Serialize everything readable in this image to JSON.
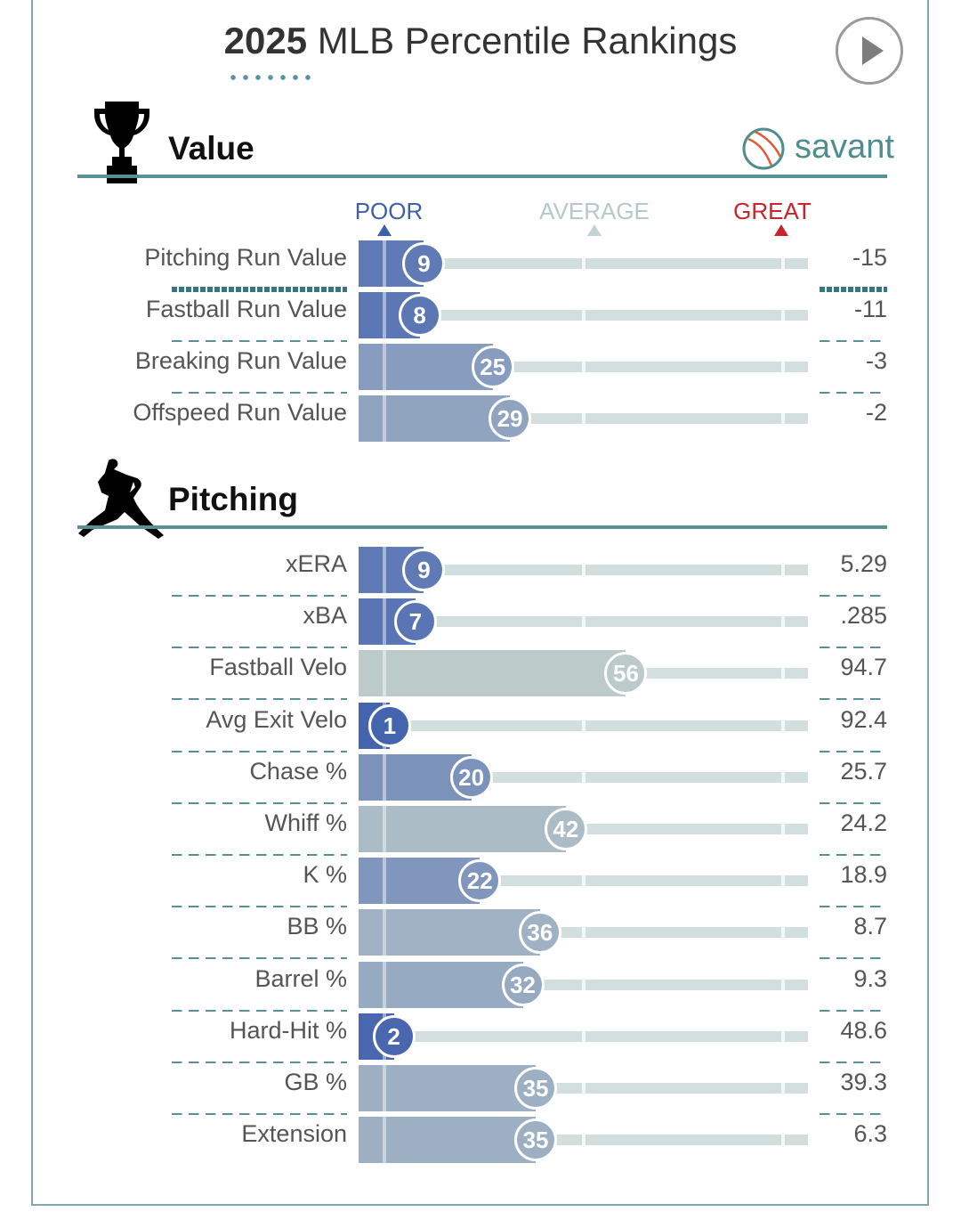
{
  "header": {
    "title_year": "2025",
    "title_rest": " MLB Percentile Rankings"
  },
  "brand": {
    "name": "savant"
  },
  "scale": {
    "poor": "POOR",
    "average": "AVERAGE",
    "great": "GREAT"
  },
  "colors": {
    "poor": "#3f5fad",
    "average": "#bccaca",
    "great": "#c8242b",
    "accent": "#5b8f96"
  },
  "icons": {
    "value": "trophy-icon",
    "pitching": "pitcher-silhouette-icon",
    "brand": "baseball-icon",
    "control": "play-icon"
  },
  "chart_data": {
    "type": "bar",
    "xlim": [
      0,
      100
    ],
    "sections": [
      {
        "title": "Value",
        "metrics": [
          {
            "name": "Pitching Run Value",
            "percentile": 9,
            "value": "-15"
          },
          {
            "name": "Fastball Run Value",
            "percentile": 8,
            "value": "-11"
          },
          {
            "name": "Breaking Run Value",
            "percentile": 25,
            "value": "-3"
          },
          {
            "name": "Offspeed Run Value",
            "percentile": 29,
            "value": "-2"
          }
        ]
      },
      {
        "title": "Pitching",
        "metrics": [
          {
            "name": "xERA",
            "percentile": 9,
            "value": "5.29"
          },
          {
            "name": "xBA",
            "percentile": 7,
            "value": ".285"
          },
          {
            "name": "Fastball Velo",
            "percentile": 56,
            "value": "94.7"
          },
          {
            "name": "Avg Exit Velo",
            "percentile": 1,
            "value": "92.4"
          },
          {
            "name": "Chase %",
            "percentile": 20,
            "value": "25.7"
          },
          {
            "name": "Whiff %",
            "percentile": 42,
            "value": "24.2"
          },
          {
            "name": "K %",
            "percentile": 22,
            "value": "18.9"
          },
          {
            "name": "BB %",
            "percentile": 36,
            "value": "8.7"
          },
          {
            "name": "Barrel %",
            "percentile": 32,
            "value": "9.3"
          },
          {
            "name": "Hard-Hit %",
            "percentile": 2,
            "value": "48.6"
          },
          {
            "name": "GB %",
            "percentile": 35,
            "value": "39.3"
          },
          {
            "name": "Extension",
            "percentile": 35,
            "value": "6.3"
          }
        ]
      }
    ]
  }
}
